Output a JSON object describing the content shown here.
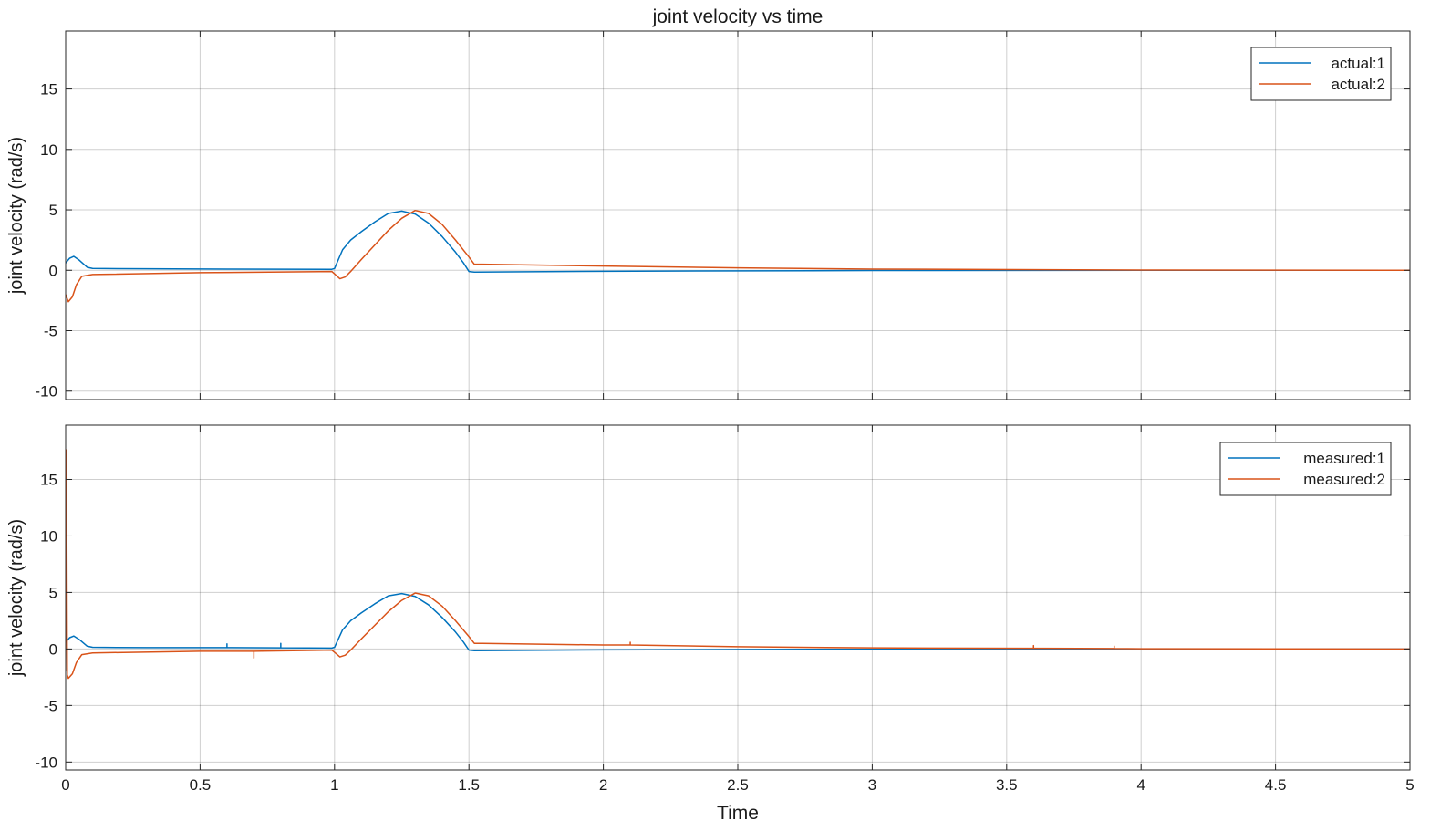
{
  "chart_data": [
    {
      "type": "line",
      "title": "joint velocity vs time",
      "xlabel": "",
      "ylabel": "joint velocity (rad/s)",
      "xlim": [
        0,
        5
      ],
      "ylim": [
        -10.7,
        19.8
      ],
      "x_ticks": [
        0,
        0.5,
        1,
        1.5,
        2,
        2.5,
        3,
        3.5,
        4,
        4.5,
        5
      ],
      "x_tick_labels": [
        "",
        "",
        "",
        "",
        "",
        "",
        "",
        "",
        "",
        "",
        ""
      ],
      "y_ticks": [
        -10,
        -5,
        0,
        5,
        10,
        15
      ],
      "y_tick_labels": [
        "-10",
        "-5",
        "0",
        "5",
        "10",
        "15"
      ],
      "grid": true,
      "legend_position": "top-right",
      "series": [
        {
          "name": "actual:1",
          "color": "#0072BD",
          "points": [
            [
              0,
              0.6
            ],
            [
              0.015,
              1.0
            ],
            [
              0.03,
              1.15
            ],
            [
              0.05,
              0.85
            ],
            [
              0.08,
              0.25
            ],
            [
              0.1,
              0.15
            ],
            [
              0.3,
              0.12
            ],
            [
              0.6,
              0.1
            ],
            [
              0.99,
              0.08
            ],
            [
              1.0,
              0.15
            ],
            [
              1.03,
              1.7
            ],
            [
              1.06,
              2.5
            ],
            [
              1.1,
              3.2
            ],
            [
              1.15,
              4.0
            ],
            [
              1.2,
              4.7
            ],
            [
              1.25,
              4.9
            ],
            [
              1.3,
              4.65
            ],
            [
              1.35,
              3.9
            ],
            [
              1.4,
              2.8
            ],
            [
              1.45,
              1.5
            ],
            [
              1.48,
              0.6
            ],
            [
              1.5,
              -0.1
            ],
            [
              1.52,
              -0.15
            ],
            [
              2.0,
              -0.08
            ],
            [
              3.0,
              -0.02
            ],
            [
              4.0,
              0.0
            ],
            [
              5.0,
              0.0
            ]
          ]
        },
        {
          "name": "actual:2",
          "color": "#D95319",
          "points": [
            [
              0,
              -2.0
            ],
            [
              0.01,
              -2.6
            ],
            [
              0.025,
              -2.2
            ],
            [
              0.04,
              -1.2
            ],
            [
              0.06,
              -0.5
            ],
            [
              0.1,
              -0.35
            ],
            [
              0.5,
              -0.2
            ],
            [
              0.99,
              -0.1
            ],
            [
              1.0,
              -0.3
            ],
            [
              1.02,
              -0.7
            ],
            [
              1.04,
              -0.55
            ],
            [
              1.06,
              -0.1
            ],
            [
              1.1,
              0.9
            ],
            [
              1.15,
              2.1
            ],
            [
              1.2,
              3.3
            ],
            [
              1.25,
              4.3
            ],
            [
              1.3,
              4.95
            ],
            [
              1.35,
              4.7
            ],
            [
              1.4,
              3.8
            ],
            [
              1.45,
              2.5
            ],
            [
              1.5,
              1.1
            ],
            [
              1.52,
              0.5
            ],
            [
              1.55,
              0.5
            ],
            [
              2.0,
              0.35
            ],
            [
              2.5,
              0.2
            ],
            [
              3.0,
              0.1
            ],
            [
              4.0,
              0.02
            ],
            [
              5.0,
              0.0
            ]
          ]
        }
      ]
    },
    {
      "type": "line",
      "title": "",
      "xlabel": "Time",
      "ylabel": "joint velocity (rad/s)",
      "xlim": [
        0,
        5
      ],
      "ylim": [
        -10.7,
        19.8
      ],
      "x_ticks": [
        0,
        0.5,
        1,
        1.5,
        2,
        2.5,
        3,
        3.5,
        4,
        4.5,
        5
      ],
      "x_tick_labels": [
        "0",
        "0.5",
        "1",
        "1.5",
        "2",
        "2.5",
        "3",
        "3.5",
        "4",
        "4.5",
        "5"
      ],
      "y_ticks": [
        -10,
        -5,
        0,
        5,
        10,
        15
      ],
      "y_tick_labels": [
        "-10",
        "-5",
        "0",
        "5",
        "10",
        "15"
      ],
      "grid": true,
      "legend_position": "top-right",
      "series": [
        {
          "name": "measured:1",
          "color": "#0072BD",
          "points": [
            [
              0,
              0.6
            ],
            [
              0.015,
              1.0
            ],
            [
              0.03,
              1.15
            ],
            [
              0.05,
              0.85
            ],
            [
              0.08,
              0.25
            ],
            [
              0.1,
              0.15
            ],
            [
              0.3,
              0.12
            ],
            [
              0.6,
              0.12
            ],
            [
              0.6,
              0.45
            ],
            [
              0.6,
              0.12
            ],
            [
              0.8,
              0.1
            ],
            [
              0.8,
              0.5
            ],
            [
              0.8,
              0.1
            ],
            [
              0.99,
              0.08
            ],
            [
              1.0,
              0.15
            ],
            [
              1.03,
              1.7
            ],
            [
              1.06,
              2.5
            ],
            [
              1.1,
              3.2
            ],
            [
              1.15,
              4.0
            ],
            [
              1.2,
              4.7
            ],
            [
              1.25,
              4.9
            ],
            [
              1.3,
              4.65
            ],
            [
              1.35,
              3.9
            ],
            [
              1.4,
              2.8
            ],
            [
              1.45,
              1.5
            ],
            [
              1.48,
              0.6
            ],
            [
              1.5,
              -0.1
            ],
            [
              1.52,
              -0.15
            ],
            [
              2.0,
              -0.08
            ],
            [
              3.0,
              -0.02
            ],
            [
              4.0,
              0.0
            ],
            [
              5.0,
              0.0
            ]
          ]
        },
        {
          "name": "measured:2",
          "color": "#D95319",
          "points": [
            [
              0,
              -2.0
            ],
            [
              0.003,
              17.6
            ],
            [
              0.006,
              -2.3
            ],
            [
              0.01,
              -2.6
            ],
            [
              0.025,
              -2.2
            ],
            [
              0.04,
              -1.2
            ],
            [
              0.06,
              -0.5
            ],
            [
              0.1,
              -0.35
            ],
            [
              0.5,
              -0.2
            ],
            [
              0.7,
              -0.2
            ],
            [
              0.7,
              -0.8
            ],
            [
              0.7,
              -0.2
            ],
            [
              0.99,
              -0.1
            ],
            [
              1.0,
              -0.3
            ],
            [
              1.02,
              -0.7
            ],
            [
              1.04,
              -0.55
            ],
            [
              1.06,
              -0.1
            ],
            [
              1.1,
              0.9
            ],
            [
              1.15,
              2.1
            ],
            [
              1.2,
              3.3
            ],
            [
              1.25,
              4.3
            ],
            [
              1.3,
              4.95
            ],
            [
              1.35,
              4.7
            ],
            [
              1.4,
              3.8
            ],
            [
              1.45,
              2.5
            ],
            [
              1.5,
              1.1
            ],
            [
              1.52,
              0.5
            ],
            [
              1.55,
              0.5
            ],
            [
              2.0,
              0.35
            ],
            [
              2.1,
              0.35
            ],
            [
              2.1,
              0.6
            ],
            [
              2.1,
              0.35
            ],
            [
              2.5,
              0.2
            ],
            [
              3.0,
              0.1
            ],
            [
              3.6,
              0.06
            ],
            [
              3.6,
              0.3
            ],
            [
              3.6,
              0.06
            ],
            [
              3.9,
              0.04
            ],
            [
              3.9,
              0.25
            ],
            [
              3.9,
              0.04
            ],
            [
              4.0,
              0.02
            ],
            [
              5.0,
              0.0
            ]
          ]
        }
      ]
    }
  ]
}
